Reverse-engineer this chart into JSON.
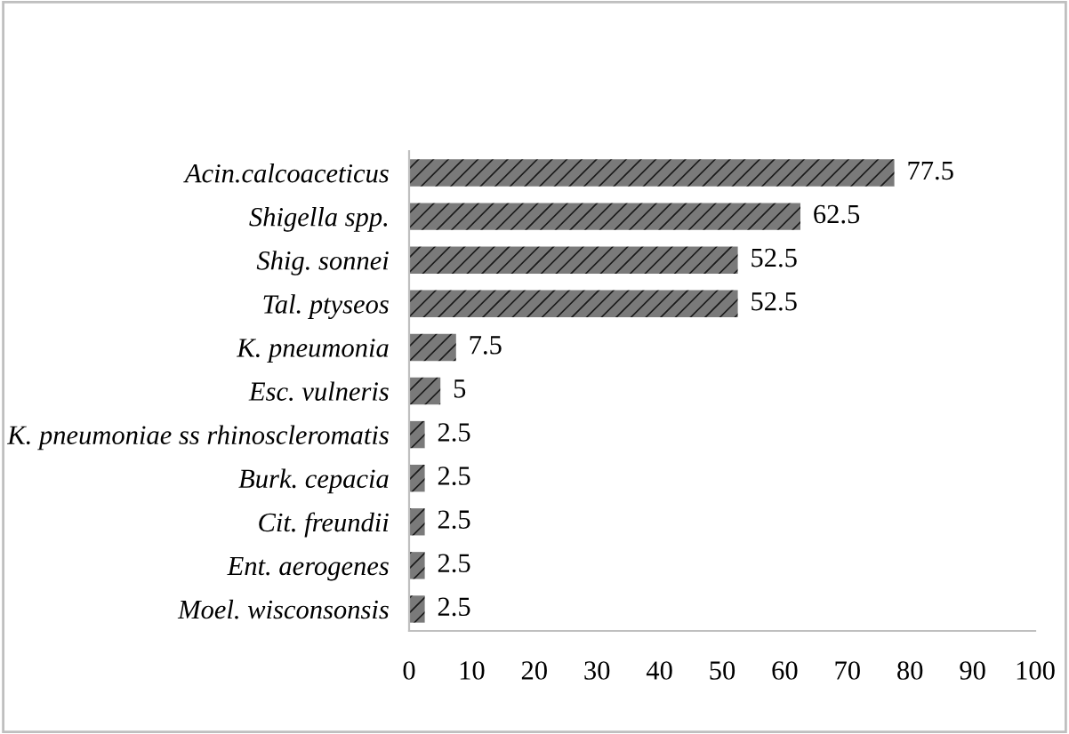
{
  "chart_data": {
    "type": "bar",
    "orientation": "horizontal",
    "categories": [
      "Acin.calcoaceticus",
      "Shigella spp.",
      "Shig. sonnei",
      "Tal. ptyseos",
      "K. pneumonia",
      "Esc. vulneris",
      "K. pneumoniae ss rhinoscleromatis",
      "Burk. cepacia",
      "Cit. freundii",
      "Ent. aerogenes",
      "Moel. wisconsonsis"
    ],
    "values": [
      77.5,
      62.5,
      52.5,
      52.5,
      7.5,
      5,
      2.5,
      2.5,
      2.5,
      2.5,
      2.5
    ],
    "color": "#7a7a7a",
    "xlim": [
      0,
      100
    ],
    "xticks": [
      0,
      10,
      20,
      30,
      40,
      50,
      60,
      70,
      80,
      90,
      100
    ],
    "data_labels": true,
    "grid": false,
    "legend": false
  }
}
